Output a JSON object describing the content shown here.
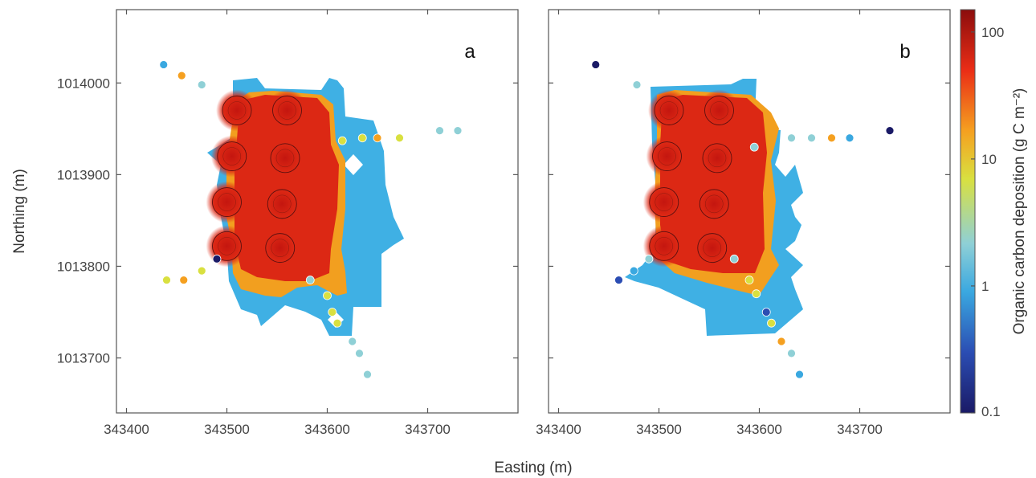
{
  "chart_data": {
    "type": "heatmap",
    "xlabel": "Easting (m)",
    "ylabel": "Northing (m)",
    "xlim": [
      343390,
      343790
    ],
    "ylim": [
      1013640,
      1014080
    ],
    "xticks": [
      "343400",
      "343500",
      "343600",
      "343700"
    ],
    "yticks": [
      "1013700",
      "1013800",
      "1013900",
      "1014000"
    ],
    "xtick_values": [
      343400,
      343500,
      343600,
      343700
    ],
    "ytick_values": [
      1013700,
      1013800,
      1013900,
      1014000
    ],
    "colorbar": {
      "label": "Organic carbon deposition (g C m⁻²)",
      "scale": "log",
      "range": [
        0.1,
        150
      ],
      "ticks": [
        "0.1",
        "1",
        "10",
        "100"
      ],
      "tick_values": [
        0.1,
        1,
        10,
        100
      ],
      "colors": [
        "#1a1a66",
        "#2b4db3",
        "#3aa8e0",
        "#8fd0d6",
        "#d9e040",
        "#f5a020",
        "#ea2d16",
        "#8b0d0d"
      ]
    },
    "panels": [
      {
        "label": "a",
        "cages": [
          {
            "x": 343510,
            "y": 1013970
          },
          {
            "x": 343560,
            "y": 1013970
          },
          {
            "x": 343505,
            "y": 1013920
          },
          {
            "x": 343558,
            "y": 1013918
          },
          {
            "x": 343500,
            "y": 1013870
          },
          {
            "x": 343555,
            "y": 1013868
          },
          {
            "x": 343500,
            "y": 1013822
          },
          {
            "x": 343553,
            "y": 1013820
          }
        ],
        "stations": [
          {
            "x": 343437,
            "y": 1014020,
            "v": 1.2
          },
          {
            "x": 343455,
            "y": 1014008,
            "v": 12
          },
          {
            "x": 343475,
            "y": 1013998,
            "v": 2.0
          },
          {
            "x": 343615,
            "y": 1013937,
            "v": 8
          },
          {
            "x": 343635,
            "y": 1013940,
            "v": 10
          },
          {
            "x": 343650,
            "y": 1013940,
            "v": 15
          },
          {
            "x": 343672,
            "y": 1013940,
            "v": 6
          },
          {
            "x": 343712,
            "y": 1013948,
            "v": 1.6
          },
          {
            "x": 343730,
            "y": 1013948,
            "v": 1.6
          },
          {
            "x": 343440,
            "y": 1013785,
            "v": 4
          },
          {
            "x": 343457,
            "y": 1013785,
            "v": 12
          },
          {
            "x": 343475,
            "y": 1013795,
            "v": 5
          },
          {
            "x": 343490,
            "y": 1013808,
            "v": 0.1
          },
          {
            "x": 343583,
            "y": 1013785,
            "v": 2
          },
          {
            "x": 343600,
            "y": 1013768,
            "v": 8
          },
          {
            "x": 343605,
            "y": 1013750,
            "v": 4
          },
          {
            "x": 343610,
            "y": 1013738,
            "v": 6
          },
          {
            "x": 343625,
            "y": 1013718,
            "v": 2.5
          },
          {
            "x": 343632,
            "y": 1013705,
            "v": 1.8
          },
          {
            "x": 343640,
            "y": 1013682,
            "v": 2
          }
        ]
      },
      {
        "label": "b",
        "cages": [
          {
            "x": 343510,
            "y": 1013970
          },
          {
            "x": 343560,
            "y": 1013970
          },
          {
            "x": 343508,
            "y": 1013920
          },
          {
            "x": 343558,
            "y": 1013918
          },
          {
            "x": 343505,
            "y": 1013870
          },
          {
            "x": 343555,
            "y": 1013868
          },
          {
            "x": 343505,
            "y": 1013822
          },
          {
            "x": 343553,
            "y": 1013820
          }
        ],
        "stations": [
          {
            "x": 343437,
            "y": 1014020,
            "v": 0.1
          },
          {
            "x": 343478,
            "y": 1013998,
            "v": 1.5
          },
          {
            "x": 343595,
            "y": 1013930,
            "v": 2
          },
          {
            "x": 343632,
            "y": 1013940,
            "v": 2
          },
          {
            "x": 343652,
            "y": 1013940,
            "v": 2
          },
          {
            "x": 343672,
            "y": 1013940,
            "v": 12
          },
          {
            "x": 343690,
            "y": 1013940,
            "v": 0.6
          },
          {
            "x": 343730,
            "y": 1013948,
            "v": 0.15
          },
          {
            "x": 343460,
            "y": 1013785,
            "v": 0.2
          },
          {
            "x": 343475,
            "y": 1013795,
            "v": 0.6
          },
          {
            "x": 343490,
            "y": 1013808,
            "v": 2
          },
          {
            "x": 343575,
            "y": 1013808,
            "v": 2
          },
          {
            "x": 343590,
            "y": 1013785,
            "v": 5
          },
          {
            "x": 343597,
            "y": 1013770,
            "v": 6
          },
          {
            "x": 343607,
            "y": 1013750,
            "v": 0.3
          },
          {
            "x": 343612,
            "y": 1013738,
            "v": 5
          },
          {
            "x": 343622,
            "y": 1013718,
            "v": 15
          },
          {
            "x": 343632,
            "y": 1013705,
            "v": 1.5
          },
          {
            "x": 343640,
            "y": 1013682,
            "v": 1.2
          }
        ]
      }
    ]
  }
}
